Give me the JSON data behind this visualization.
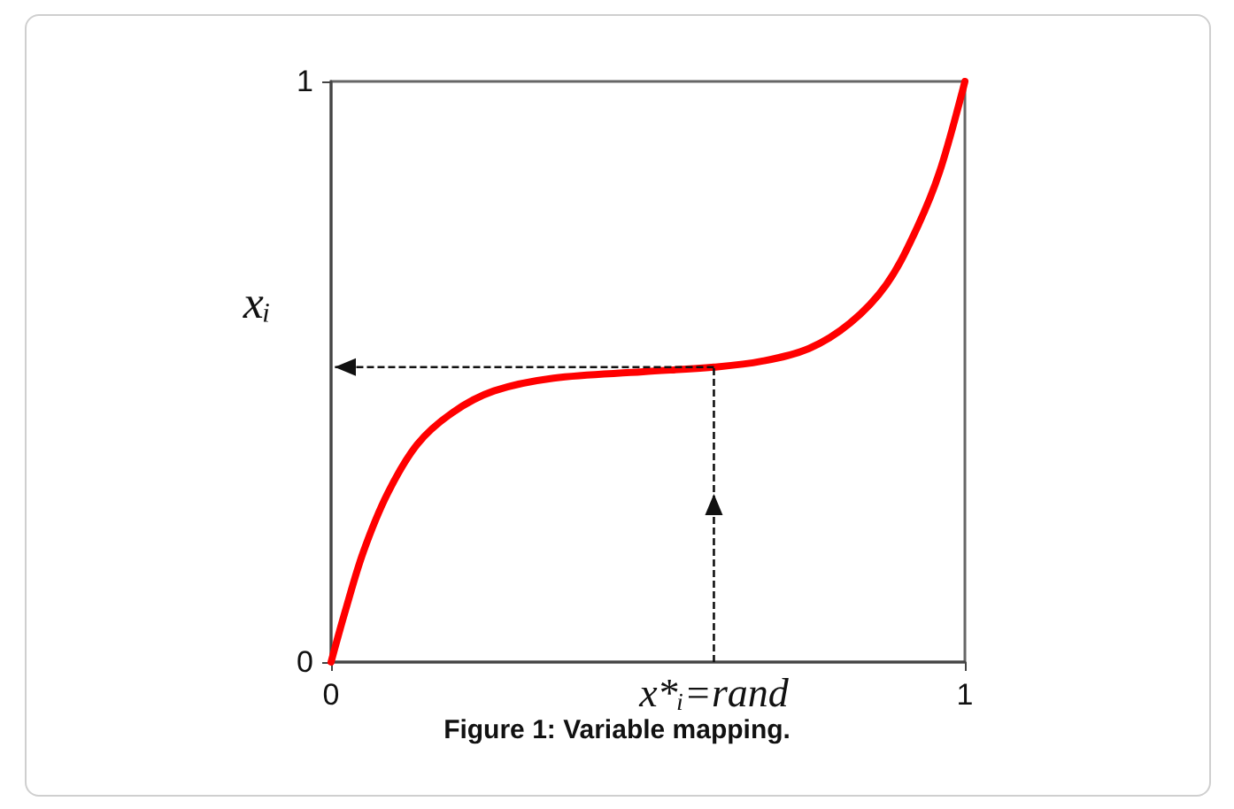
{
  "chart_data": {
    "type": "line",
    "title": "Figure 1: Variable mapping.",
    "ylabel": "xᵢ",
    "x": [
      0,
      0.023,
      0.051,
      0.089,
      0.136,
      0.192,
      0.257,
      0.351,
      0.492,
      0.604,
      0.679,
      0.754,
      0.819,
      0.876,
      0.922,
      0.96,
      1
    ],
    "series": [
      {
        "color": "#ff0000",
        "values": [
          0,
          0.09,
          0.19,
          0.29,
          0.375,
          0.43,
          0.467,
          0.489,
          0.5,
          0.508,
          0.518,
          0.54,
          0.584,
          0.65,
          0.742,
          0.844,
          1
        ]
      }
    ],
    "xlim": [
      0,
      1
    ],
    "xticks": [
      0,
      1
    ],
    "ylim": [
      0,
      1
    ],
    "yticks": [
      0,
      1
    ],
    "grid": false,
    "marker": "none",
    "line_style": "solid",
    "annotations": [
      {
        "text": "x*ᵢ=rand",
        "x": 0.604,
        "y": 0.508
      }
    ]
  }
}
